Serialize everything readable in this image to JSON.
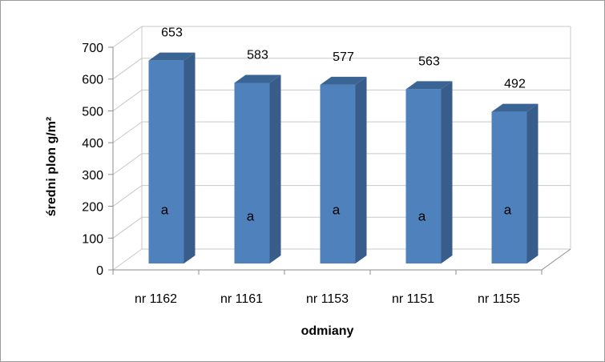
{
  "chart_data": {
    "type": "bar",
    "style": "3d-column",
    "categories": [
      "nr 1162",
      "nr 1161",
      "nr 1153",
      "nr 1151",
      "nr 1155"
    ],
    "values": [
      653,
      583,
      577,
      563,
      492
    ],
    "data_labels": [
      "653",
      "583",
      "577",
      "563",
      "492"
    ],
    "group_letters": [
      "a",
      "a",
      "a",
      "a",
      "a"
    ],
    "xlabel": "odmiany",
    "ylabel": "średni plon g/m²",
    "ylim": [
      0,
      700
    ],
    "yticks": [
      0,
      100,
      200,
      300,
      400,
      500,
      600,
      700
    ],
    "grid": true,
    "legend": "none",
    "colors": {
      "bar_front": "#4f81bd",
      "bar_side": "#385d8a",
      "bar_top": "#3a6494",
      "grid": "#c8c8c8",
      "axis": "#8c8c8c"
    }
  }
}
